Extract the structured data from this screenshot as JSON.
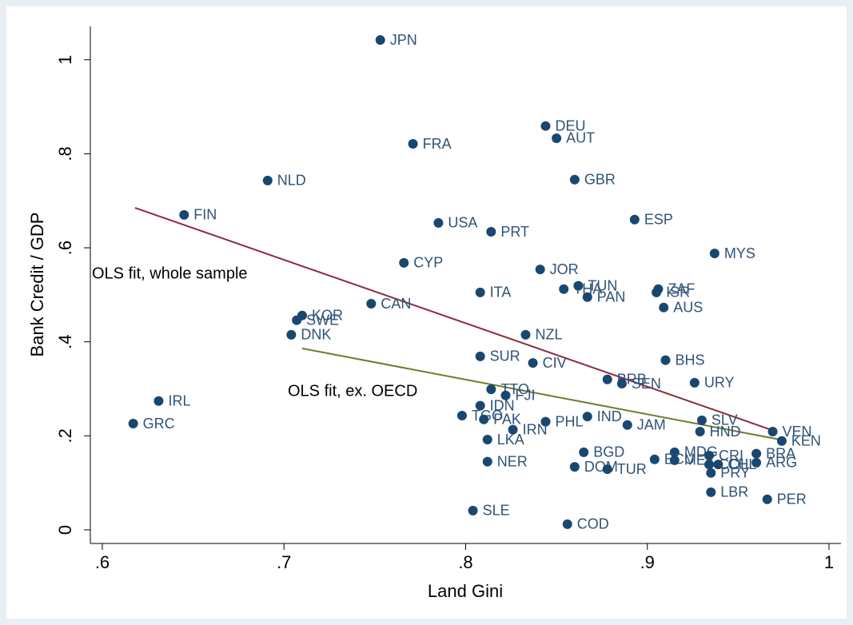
{
  "chart_data": {
    "type": "scatter",
    "x_label": "Land Gini",
    "y_label": "Bank Credit / GDP",
    "xlim": [
      0.5934,
      1.0066
    ],
    "ylim": [
      -0.029,
      1.071
    ],
    "xticks": [
      {
        "value": 0.6,
        "label": ".6"
      },
      {
        "value": 0.7,
        "label": ".7"
      },
      {
        "value": 0.8,
        "label": ".8"
      },
      {
        "value": 0.9,
        "label": ".9"
      },
      1
    ],
    "yticks": [
      0,
      {
        "value": 0.2,
        "label": ".2"
      },
      {
        "value": 0.4,
        "label": ".4"
      },
      {
        "value": 0.6,
        "label": ".6"
      },
      {
        "value": 0.8,
        "label": ".8"
      },
      1
    ],
    "grid": false,
    "color": "#1a476f",
    "labels": [
      "JPN",
      "DEU",
      "AUT",
      "FRA",
      "NLD",
      "GBR",
      "FIN",
      "USA",
      "ESP",
      "PRT",
      "MYS",
      "CYP",
      "JOR",
      "ITA",
      "THA",
      "TUN",
      "PAN",
      "ZAF",
      "ISR",
      "AUS",
      "CAN",
      "KOR",
      "SWE",
      "DNK",
      "NZL",
      "SUR",
      "CIV",
      "BHS",
      "URY",
      "BRB",
      "SEN",
      "TTO",
      "FJI",
      "IRL",
      "IDN",
      "GRC",
      "TGO",
      "PAK",
      "IND",
      "PHL",
      "JAM",
      "IRN",
      "SLV",
      "HND",
      "VEN",
      "KEN",
      "LKA",
      "BGD",
      "MDG",
      "ECU",
      "MEX",
      "CRI",
      "COL",
      "CHL",
      "BRA",
      "ARG",
      "PRY",
      "NER",
      "DOM",
      "TUR",
      "LBR",
      "PER",
      "SLE",
      "COD"
    ],
    "x": [
      0.753,
      0.844,
      0.85,
      0.771,
      0.691,
      0.86,
      0.645,
      0.785,
      0.893,
      0.814,
      0.937,
      0.766,
      0.841,
      0.808,
      0.854,
      0.862,
      0.867,
      0.906,
      0.905,
      0.909,
      0.748,
      0.71,
      0.707,
      0.704,
      0.833,
      0.808,
      0.837,
      0.91,
      0.926,
      0.878,
      0.886,
      0.814,
      0.822,
      0.631,
      0.808,
      0.617,
      0.798,
      0.81,
      0.867,
      0.844,
      0.889,
      0.826,
      0.93,
      0.929,
      0.969,
      0.974,
      0.812,
      0.865,
      0.915,
      0.904,
      0.915,
      0.934,
      0.934,
      0.939,
      0.96,
      0.96,
      0.935,
      0.812,
      0.86,
      0.878,
      0.935,
      0.966,
      0.804,
      0.856
    ],
    "y": [
      1.042,
      0.859,
      0.833,
      0.821,
      0.743,
      0.745,
      0.67,
      0.653,
      0.66,
      0.634,
      0.588,
      0.568,
      0.554,
      0.505,
      0.512,
      0.519,
      0.495,
      0.512,
      0.505,
      0.473,
      0.481,
      0.456,
      0.446,
      0.415,
      0.415,
      0.369,
      0.355,
      0.361,
      0.313,
      0.32,
      0.311,
      0.299,
      0.286,
      0.274,
      0.264,
      0.226,
      0.243,
      0.235,
      0.241,
      0.23,
      0.223,
      0.213,
      0.233,
      0.209,
      0.209,
      0.189,
      0.192,
      0.165,
      0.165,
      0.15,
      0.148,
      0.158,
      0.139,
      0.139,
      0.162,
      0.143,
      0.121,
      0.145,
      0.134,
      0.129,
      0.08,
      0.065,
      0.041,
      0.012
    ],
    "fit_lines": [
      {
        "x": [
          0.618,
          0.971
        ],
        "y": [
          0.685,
          0.209
        ],
        "color": "#8c2c3c"
      },
      {
        "x": [
          0.71,
          0.973
        ],
        "y": [
          0.386,
          0.192
        ],
        "color": "#6b7d2a"
      }
    ],
    "annotations": [
      "OLS fit, whole sample",
      "OLS fit, ex. OECD"
    ]
  }
}
